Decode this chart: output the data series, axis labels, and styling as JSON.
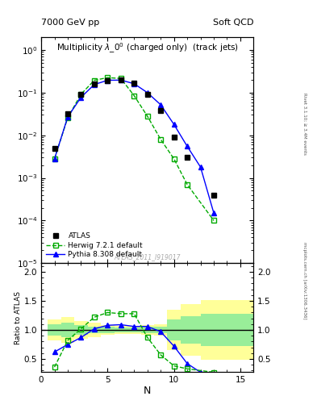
{
  "title_main": "Multiplicity $\\lambda\\_0^0$ (charged only)  (track jets)",
  "header_left": "7000 GeV pp",
  "header_right": "Soft QCD",
  "watermark": "ATLAS_2011_I919017",
  "right_label_top": "Rivet 3.1.10; ≥ 3.4M events",
  "right_label_bot": "mcplots.cern.ch [arXiv:1306.3436]",
  "atlas_x": [
    1,
    2,
    3,
    4,
    5,
    6,
    7,
    8,
    9,
    10,
    11,
    13
  ],
  "atlas_y": [
    0.005,
    0.032,
    0.09,
    0.16,
    0.195,
    0.2,
    0.17,
    0.09,
    0.038,
    0.009,
    0.003,
    0.0004
  ],
  "herwig_x": [
    1,
    2,
    3,
    4,
    5,
    6,
    7,
    8,
    9,
    10,
    11,
    13
  ],
  "herwig_y": [
    0.0028,
    0.026,
    0.092,
    0.195,
    0.225,
    0.215,
    0.085,
    0.028,
    0.008,
    0.0028,
    0.0007,
    0.0001
  ],
  "pythia_x": [
    1,
    2,
    3,
    4,
    5,
    6,
    7,
    8,
    9,
    10,
    11,
    12,
    13
  ],
  "pythia_y": [
    0.0028,
    0.027,
    0.078,
    0.155,
    0.195,
    0.197,
    0.162,
    0.1,
    0.052,
    0.018,
    0.0055,
    0.0018,
    0.00015
  ],
  "ratio_herwig_x": [
    1,
    2,
    3,
    4,
    5,
    6,
    7,
    8,
    9,
    10,
    11,
    13
  ],
  "ratio_herwig_y": [
    0.36,
    0.82,
    1.02,
    1.22,
    1.3,
    1.28,
    1.28,
    0.87,
    0.57,
    0.38,
    0.33,
    0.27
  ],
  "ratio_pythia_x": [
    1,
    2,
    3,
    4,
    5,
    6,
    7,
    8,
    9,
    10,
    11,
    12,
    13
  ],
  "ratio_pythia_y": [
    0.62,
    0.75,
    0.87,
    1.02,
    1.08,
    1.09,
    1.06,
    1.06,
    0.97,
    0.72,
    0.42,
    0.27,
    0.14
  ],
  "band_edges": [
    0.5,
    1.5,
    2.5,
    3.5,
    4.5,
    5.5,
    6.5,
    7.5,
    8.5,
    9.5,
    10.5,
    12.0,
    16.0
  ],
  "band_yellow_lo": [
    0.82,
    0.78,
    0.85,
    0.88,
    0.91,
    0.93,
    0.93,
    0.92,
    0.9,
    0.65,
    0.55,
    0.48
  ],
  "band_yellow_hi": [
    1.18,
    1.22,
    1.15,
    1.12,
    1.09,
    1.07,
    1.07,
    1.08,
    1.1,
    1.35,
    1.45,
    1.52
  ],
  "band_green_lo": [
    0.9,
    0.88,
    0.92,
    0.94,
    0.95,
    0.96,
    0.96,
    0.95,
    0.94,
    0.82,
    0.76,
    0.72
  ],
  "band_green_hi": [
    1.1,
    1.12,
    1.08,
    1.06,
    1.05,
    1.04,
    1.04,
    1.05,
    1.06,
    1.18,
    1.24,
    1.28
  ],
  "atlas_color": "black",
  "herwig_color": "#00aa00",
  "pythia_color": "blue",
  "yellow_color": "#ffff99",
  "green_color": "#99ee99",
  "xlim": [
    0,
    16
  ],
  "ylim_main": [
    1e-05,
    2.0
  ],
  "xlabel": "N",
  "ylabel_ratio": "Ratio to ATLAS"
}
